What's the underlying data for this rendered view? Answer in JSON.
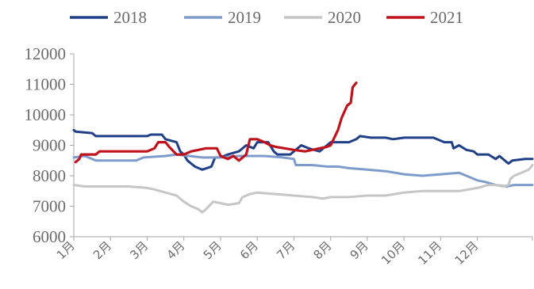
{
  "chart_data": {
    "type": "line",
    "title": "",
    "xlabel": "",
    "ylabel": "",
    "x_ticks": [
      "1月",
      "2月",
      "3月",
      "4月",
      "5月",
      "6月",
      "7月",
      "8月",
      "9月",
      "10月",
      "11月",
      "12月"
    ],
    "ylim": [
      6000,
      12000
    ],
    "y_ticks": [
      6000,
      7000,
      8000,
      9000,
      10000,
      11000,
      12000
    ],
    "y_tick_labels": [
      "6000",
      "7000",
      "8000",
      "9000",
      "10000",
      "11000",
      "12000"
    ],
    "grid": false,
    "legend_position": "top",
    "series": [
      {
        "name": "2018",
        "color": "#1f3f86",
        "points": [
          [
            1,
            9500
          ],
          [
            1.05,
            9450
          ],
          [
            1.5,
            9400
          ],
          [
            1.6,
            9300
          ],
          [
            2,
            9300
          ],
          [
            2.5,
            9300
          ],
          [
            3,
            9300
          ],
          [
            3.1,
            9350
          ],
          [
            3.4,
            9350
          ],
          [
            3.5,
            9200
          ],
          [
            3.8,
            9100
          ],
          [
            3.9,
            8800
          ],
          [
            4,
            8700
          ],
          [
            4.1,
            8500
          ],
          [
            4.3,
            8300
          ],
          [
            4.5,
            8200
          ],
          [
            4.75,
            8300
          ],
          [
            4.85,
            8600
          ],
          [
            5,
            8600
          ],
          [
            5.2,
            8700
          ],
          [
            5.5,
            8800
          ],
          [
            5.7,
            9000
          ],
          [
            5.9,
            8900
          ],
          [
            6,
            9100
          ],
          [
            6.3,
            9100
          ],
          [
            6.45,
            8800
          ],
          [
            6.55,
            8700
          ],
          [
            6.9,
            8700
          ],
          [
            7,
            8800
          ],
          [
            7.2,
            9000
          ],
          [
            7.4,
            8900
          ],
          [
            7.55,
            8850
          ],
          [
            7.7,
            8800
          ],
          [
            7.9,
            9000
          ],
          [
            8,
            9100
          ],
          [
            8.5,
            9100
          ],
          [
            8.7,
            9200
          ],
          [
            8.8,
            9300
          ],
          [
            9.1,
            9250
          ],
          [
            9.5,
            9250
          ],
          [
            9.7,
            9200
          ],
          [
            10,
            9250
          ],
          [
            10.8,
            9250
          ],
          [
            11.1,
            9100
          ],
          [
            11.3,
            9100
          ],
          [
            11.35,
            8900
          ],
          [
            11.5,
            9000
          ],
          [
            11.7,
            8850
          ],
          [
            11.9,
            8800
          ],
          [
            12,
            8700
          ],
          [
            12.3,
            8700
          ],
          [
            12.5,
            8550
          ],
          [
            12.6,
            8650
          ],
          [
            12.75,
            8500
          ],
          [
            12.85,
            8400
          ],
          [
            12.95,
            8500
          ],
          [
            13.3,
            8550
          ],
          [
            13.5,
            8550
          ]
        ]
      },
      {
        "name": "2019",
        "color": "#7e9ccb",
        "points": [
          [
            1,
            8600
          ],
          [
            1.3,
            8650
          ],
          [
            1.5,
            8550
          ],
          [
            1.6,
            8500
          ],
          [
            2,
            8500
          ],
          [
            2.7,
            8500
          ],
          [
            2.9,
            8600
          ],
          [
            3.5,
            8650
          ],
          [
            3.8,
            8700
          ],
          [
            4.5,
            8600
          ],
          [
            5,
            8600
          ],
          [
            5.5,
            8650
          ],
          [
            5.9,
            8650
          ],
          [
            6.2,
            8650
          ],
          [
            6.7,
            8600
          ],
          [
            7,
            8550
          ],
          [
            7.05,
            8350
          ],
          [
            7.5,
            8350
          ],
          [
            7.9,
            8300
          ],
          [
            8.2,
            8300
          ],
          [
            8.5,
            8250
          ],
          [
            9,
            8200
          ],
          [
            9.5,
            8150
          ],
          [
            10,
            8050
          ],
          [
            10.5,
            8000
          ],
          [
            11,
            8050
          ],
          [
            11.5,
            8100
          ],
          [
            11.7,
            8000
          ],
          [
            12,
            7850
          ],
          [
            12.2,
            7800
          ],
          [
            12.5,
            7700
          ],
          [
            12.8,
            7650
          ],
          [
            13,
            7700
          ],
          [
            13.5,
            7700
          ]
        ]
      },
      {
        "name": "2020",
        "color": "#c6c6c6",
        "points": [
          [
            1,
            7700
          ],
          [
            1.3,
            7650
          ],
          [
            2,
            7650
          ],
          [
            2.5,
            7650
          ],
          [
            3,
            7600
          ],
          [
            3.2,
            7550
          ],
          [
            3.5,
            7450
          ],
          [
            3.8,
            7350
          ],
          [
            4,
            7150
          ],
          [
            4.2,
            7000
          ],
          [
            4.4,
            6900
          ],
          [
            4.5,
            6800
          ],
          [
            4.6,
            6900
          ],
          [
            4.8,
            7150
          ],
          [
            5,
            7100
          ],
          [
            5.2,
            7050
          ],
          [
            5.5,
            7100
          ],
          [
            5.6,
            7300
          ],
          [
            5.8,
            7400
          ],
          [
            6,
            7450
          ],
          [
            6.5,
            7400
          ],
          [
            7,
            7350
          ],
          [
            7.5,
            7300
          ],
          [
            7.8,
            7250
          ],
          [
            8,
            7300
          ],
          [
            8.5,
            7300
          ],
          [
            9,
            7350
          ],
          [
            9.5,
            7350
          ],
          [
            10,
            7450
          ],
          [
            10.5,
            7500
          ],
          [
            11,
            7500
          ],
          [
            11.5,
            7500
          ],
          [
            12,
            7600
          ],
          [
            12.3,
            7700
          ],
          [
            12.5,
            7700
          ],
          [
            12.7,
            7650
          ],
          [
            12.85,
            7700
          ],
          [
            12.9,
            7900
          ],
          [
            13,
            8000
          ],
          [
            13.2,
            8100
          ],
          [
            13.4,
            8200
          ],
          [
            13.5,
            8350
          ]
        ]
      },
      {
        "name": "2021",
        "color": "#c0121d",
        "points": [
          [
            1.05,
            8450
          ],
          [
            1.15,
            8550
          ],
          [
            1.2,
            8700
          ],
          [
            1.6,
            8700
          ],
          [
            1.7,
            8800
          ],
          [
            2,
            8800
          ],
          [
            2.5,
            8800
          ],
          [
            3,
            8800
          ],
          [
            3.2,
            8900
          ],
          [
            3.3,
            9100
          ],
          [
            3.5,
            9100
          ],
          [
            3.6,
            8950
          ],
          [
            3.8,
            8700
          ],
          [
            4,
            8700
          ],
          [
            4.2,
            8800
          ],
          [
            4.4,
            8850
          ],
          [
            4.6,
            8900
          ],
          [
            4.9,
            8900
          ],
          [
            5,
            8650
          ],
          [
            5.2,
            8550
          ],
          [
            5.35,
            8650
          ],
          [
            5.5,
            8500
          ],
          [
            5.7,
            8700
          ],
          [
            5.8,
            9200
          ],
          [
            6,
            9200
          ],
          [
            6.2,
            9100
          ],
          [
            6.35,
            9000
          ],
          [
            6.5,
            8950
          ],
          [
            7,
            8850
          ],
          [
            7.3,
            8800
          ],
          [
            7.5,
            8850
          ],
          [
            7.7,
            8900
          ],
          [
            7.9,
            8950
          ],
          [
            8,
            9000
          ],
          [
            8.1,
            9250
          ],
          [
            8.2,
            9500
          ],
          [
            8.3,
            9900
          ],
          [
            8.45,
            10300
          ],
          [
            8.55,
            10400
          ],
          [
            8.6,
            10900
          ],
          [
            8.7,
            11050
          ]
        ]
      }
    ]
  }
}
